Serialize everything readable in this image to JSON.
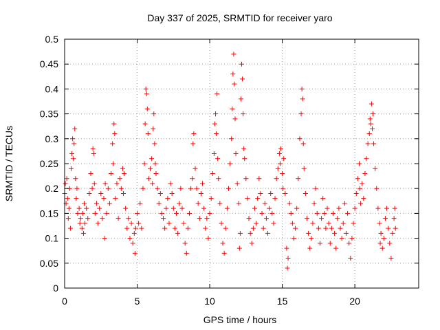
{
  "chart_data": {
    "type": "scatter",
    "title": "Day 337 of 2025, SRMTID for receiver yaro",
    "xlabel": "GPS time / hours",
    "ylabel": "SRMTID / TECUs",
    "xlim": [
      0,
      24.4
    ],
    "ylim": [
      0,
      0.5
    ],
    "x_ticks": [
      0,
      5,
      10,
      15,
      20
    ],
    "x_tick_labels": [
      "0",
      "5",
      "10",
      "15",
      "20"
    ],
    "y_ticks": [
      0,
      0.05,
      0.1,
      0.15,
      0.2,
      0.25,
      0.3,
      0.35,
      0.4,
      0.45,
      0.5
    ],
    "y_tick_labels": [
      "0",
      "0.05",
      "0.1",
      "0.15",
      "0.2",
      "0.25",
      "0.3",
      "0.35",
      "0.4",
      "0.45",
      "0.5"
    ],
    "grid": true,
    "marker": "+",
    "color": "#ff0000",
    "series": [
      {
        "name": "SRMTID",
        "points": [
          [
            0.0,
            0.19
          ],
          [
            0.05,
            0.21
          ],
          [
            0.1,
            0.17
          ],
          [
            0.15,
            0.22
          ],
          [
            0.2,
            0.18
          ],
          [
            0.25,
            0.14
          ],
          [
            0.3,
            0.16
          ],
          [
            0.35,
            0.2
          ],
          [
            0.4,
            0.12
          ],
          [
            0.45,
            0.24
          ],
          [
            0.5,
            0.27
          ],
          [
            0.55,
            0.3
          ],
          [
            0.6,
            0.26
          ],
          [
            0.65,
            0.29
          ],
          [
            0.7,
            0.32
          ],
          [
            0.75,
            0.22
          ],
          [
            0.8,
            0.18
          ],
          [
            0.85,
            0.2
          ],
          [
            0.9,
            0.15
          ],
          [
            1.0,
            0.16
          ],
          [
            1.05,
            0.13
          ],
          [
            1.1,
            0.14
          ],
          [
            1.2,
            0.12
          ],
          [
            1.25,
            0.15
          ],
          [
            1.3,
            0.11
          ],
          [
            1.35,
            0.17
          ],
          [
            1.4,
            0.13
          ],
          [
            1.5,
            0.16
          ],
          [
            1.6,
            0.14
          ],
          [
            1.7,
            0.19
          ],
          [
            1.8,
            0.23
          ],
          [
            1.9,
            0.2
          ],
          [
            1.95,
            0.28
          ],
          [
            2.0,
            0.27
          ],
          [
            2.05,
            0.21
          ],
          [
            2.1,
            0.15
          ],
          [
            2.2,
            0.17
          ],
          [
            2.3,
            0.13
          ],
          [
            2.4,
            0.16
          ],
          [
            2.5,
            0.19
          ],
          [
            2.6,
            0.14
          ],
          [
            2.7,
            0.18
          ],
          [
            2.75,
            0.1
          ],
          [
            2.8,
            0.21
          ],
          [
            2.9,
            0.15
          ],
          [
            3.0,
            0.2
          ],
          [
            3.1,
            0.17
          ],
          [
            3.2,
            0.23
          ],
          [
            3.3,
            0.29
          ],
          [
            3.35,
            0.25
          ],
          [
            3.4,
            0.33
          ],
          [
            3.45,
            0.31
          ],
          [
            3.5,
            0.18
          ],
          [
            3.6,
            0.21
          ],
          [
            3.7,
            0.14
          ],
          [
            3.8,
            0.22
          ],
          [
            3.9,
            0.2
          ],
          [
            4.0,
            0.24
          ],
          [
            4.05,
            0.19
          ],
          [
            4.1,
            0.23
          ],
          [
            4.2,
            0.16
          ],
          [
            4.3,
            0.12
          ],
          [
            4.4,
            0.14
          ],
          [
            4.5,
            0.1
          ],
          [
            4.6,
            0.13
          ],
          [
            4.7,
            0.09
          ],
          [
            4.8,
            0.11
          ],
          [
            4.85,
            0.07
          ],
          [
            4.9,
            0.12
          ],
          [
            5.0,
            0.15
          ],
          [
            5.1,
            0.13
          ],
          [
            5.2,
            0.17
          ],
          [
            5.3,
            0.12
          ],
          [
            5.4,
            0.2
          ],
          [
            5.5,
            0.25
          ],
          [
            5.55,
            0.33
          ],
          [
            5.6,
            0.4
          ],
          [
            5.65,
            0.39
          ],
          [
            5.7,
            0.36
          ],
          [
            5.75,
            0.31
          ],
          [
            5.8,
            0.22
          ],
          [
            5.9,
            0.24
          ],
          [
            6.0,
            0.26
          ],
          [
            6.05,
            0.21
          ],
          [
            6.1,
            0.32
          ],
          [
            6.15,
            0.35
          ],
          [
            6.2,
            0.29
          ],
          [
            6.25,
            0.25
          ],
          [
            6.3,
            0.23
          ],
          [
            6.4,
            0.2
          ],
          [
            6.5,
            0.17
          ],
          [
            6.6,
            0.19
          ],
          [
            6.7,
            0.15
          ],
          [
            6.8,
            0.14
          ],
          [
            6.9,
            0.12
          ],
          [
            7.0,
            0.16
          ],
          [
            7.1,
            0.18
          ],
          [
            7.2,
            0.13
          ],
          [
            7.3,
            0.21
          ],
          [
            7.4,
            0.19
          ],
          [
            7.5,
            0.16
          ],
          [
            7.6,
            0.12
          ],
          [
            7.7,
            0.15
          ],
          [
            7.8,
            0.11
          ],
          [
            7.9,
            0.17
          ],
          [
            8.0,
            0.2
          ],
          [
            8.1,
            0.16
          ],
          [
            8.2,
            0.13
          ],
          [
            8.3,
            0.09
          ],
          [
            8.4,
            0.07
          ],
          [
            8.5,
            0.12
          ],
          [
            8.6,
            0.15
          ],
          [
            8.7,
            0.2
          ],
          [
            8.8,
            0.22
          ],
          [
            8.85,
            0.29
          ],
          [
            8.9,
            0.31
          ],
          [
            9.0,
            0.24
          ],
          [
            9.1,
            0.2
          ],
          [
            9.2,
            0.17
          ],
          [
            9.3,
            0.14
          ],
          [
            9.4,
            0.19
          ],
          [
            9.5,
            0.21
          ],
          [
            9.6,
            0.16
          ],
          [
            9.7,
            0.12
          ],
          [
            9.8,
            0.14
          ],
          [
            9.9,
            0.1
          ],
          [
            10.0,
            0.15
          ],
          [
            10.1,
            0.18
          ],
          [
            10.2,
            0.23
          ],
          [
            10.3,
            0.27
          ],
          [
            10.35,
            0.33
          ],
          [
            10.4,
            0.35
          ],
          [
            10.45,
            0.31
          ],
          [
            10.5,
            0.39
          ],
          [
            10.55,
            0.26
          ],
          [
            10.6,
            0.22
          ],
          [
            10.7,
            0.17
          ],
          [
            10.8,
            0.13
          ],
          [
            10.9,
            0.09
          ],
          [
            11.0,
            0.07
          ],
          [
            11.1,
            0.12
          ],
          [
            11.2,
            0.16
          ],
          [
            11.3,
            0.2
          ],
          [
            11.4,
            0.25
          ],
          [
            11.5,
            0.3
          ],
          [
            11.55,
            0.36
          ],
          [
            11.6,
            0.43
          ],
          [
            11.65,
            0.47
          ],
          [
            11.7,
            0.41
          ],
          [
            11.75,
            0.34
          ],
          [
            11.8,
            0.27
          ],
          [
            11.9,
            0.21
          ],
          [
            12.0,
            0.17
          ],
          [
            12.05,
            0.08
          ],
          [
            12.1,
            0.11
          ],
          [
            12.15,
            0.38
          ],
          [
            12.2,
            0.45
          ],
          [
            12.25,
            0.42
          ],
          [
            12.3,
            0.35
          ],
          [
            12.35,
            0.28
          ],
          [
            12.4,
            0.26
          ],
          [
            12.5,
            0.22
          ],
          [
            12.6,
            0.18
          ],
          [
            12.7,
            0.14
          ],
          [
            12.8,
            0.11
          ],
          [
            12.9,
            0.09
          ],
          [
            13.0,
            0.12
          ],
          [
            13.1,
            0.16
          ],
          [
            13.2,
            0.13
          ],
          [
            13.3,
            0.18
          ],
          [
            13.4,
            0.22
          ],
          [
            13.5,
            0.19
          ],
          [
            13.6,
            0.15
          ],
          [
            13.7,
            0.12
          ],
          [
            13.8,
            0.17
          ],
          [
            13.9,
            0.14
          ],
          [
            14.0,
            0.11
          ],
          [
            14.1,
            0.16
          ],
          [
            14.2,
            0.19
          ],
          [
            14.3,
            0.15
          ],
          [
            14.4,
            0.13
          ],
          [
            14.5,
            0.18
          ],
          [
            14.6,
            0.22
          ],
          [
            14.7,
            0.24
          ],
          [
            14.8,
            0.27
          ],
          [
            14.85,
            0.25
          ],
          [
            14.9,
            0.28
          ],
          [
            15.0,
            0.23
          ],
          [
            15.05,
            0.2
          ],
          [
            15.1,
            0.26
          ],
          [
            15.2,
            0.19
          ],
          [
            15.3,
            0.08
          ],
          [
            15.35,
            0.04
          ],
          [
            15.4,
            0.06
          ],
          [
            15.5,
            0.17
          ],
          [
            15.6,
            0.15
          ],
          [
            15.7,
            0.13
          ],
          [
            15.8,
            0.1
          ],
          [
            15.9,
            0.12
          ],
          [
            16.0,
            0.16
          ],
          [
            16.1,
            0.22
          ],
          [
            16.2,
            0.3
          ],
          [
            16.3,
            0.35
          ],
          [
            16.35,
            0.4
          ],
          [
            16.4,
            0.38
          ],
          [
            16.45,
            0.29
          ],
          [
            16.5,
            0.24
          ],
          [
            16.6,
            0.19
          ],
          [
            16.7,
            0.14
          ],
          [
            16.8,
            0.11
          ],
          [
            16.9,
            0.08
          ],
          [
            17.0,
            0.1
          ],
          [
            17.1,
            0.13
          ],
          [
            17.2,
            0.17
          ],
          [
            17.3,
            0.2
          ],
          [
            17.4,
            0.15
          ],
          [
            17.5,
            0.12
          ],
          [
            17.6,
            0.09
          ],
          [
            17.7,
            0.14
          ],
          [
            17.8,
            0.18
          ],
          [
            17.9,
            0.15
          ],
          [
            18.0,
            0.12
          ],
          [
            18.1,
            0.16
          ],
          [
            18.2,
            0.13
          ],
          [
            18.3,
            0.09
          ],
          [
            18.4,
            0.12
          ],
          [
            18.5,
            0.15
          ],
          [
            18.6,
            0.11
          ],
          [
            18.7,
            0.08
          ],
          [
            18.8,
            0.14
          ],
          [
            18.9,
            0.16
          ],
          [
            19.0,
            0.12
          ],
          [
            19.1,
            0.1
          ],
          [
            19.2,
            0.13
          ],
          [
            19.3,
            0.17
          ],
          [
            19.4,
            0.11
          ],
          [
            19.5,
            0.15
          ],
          [
            19.6,
            0.09
          ],
          [
            19.7,
            0.06
          ],
          [
            19.8,
            0.1
          ],
          [
            19.9,
            0.13
          ],
          [
            20.0,
            0.16
          ],
          [
            20.1,
            0.19
          ],
          [
            20.2,
            0.22
          ],
          [
            20.3,
            0.25
          ],
          [
            20.35,
            0.2
          ],
          [
            20.4,
            0.17
          ],
          [
            20.5,
            0.21
          ],
          [
            20.6,
            0.18
          ],
          [
            20.7,
            0.23
          ],
          [
            20.8,
            0.26
          ],
          [
            20.9,
            0.29
          ],
          [
            21.0,
            0.31
          ],
          [
            21.05,
            0.34
          ],
          [
            21.1,
            0.33
          ],
          [
            21.15,
            0.37
          ],
          [
            21.2,
            0.32
          ],
          [
            21.25,
            0.35
          ],
          [
            21.3,
            0.29
          ],
          [
            21.4,
            0.24
          ],
          [
            21.5,
            0.2
          ],
          [
            21.6,
            0.16
          ],
          [
            21.7,
            0.13
          ],
          [
            21.75,
            0.09
          ],
          [
            21.8,
            0.11
          ],
          [
            21.9,
            0.08
          ],
          [
            22.0,
            0.1
          ],
          [
            22.1,
            0.14
          ],
          [
            22.2,
            0.16
          ],
          [
            22.3,
            0.12
          ],
          [
            22.4,
            0.09
          ],
          [
            22.5,
            0.06
          ],
          [
            22.6,
            0.11
          ],
          [
            22.7,
            0.14
          ],
          [
            22.75,
            0.16
          ],
          [
            22.8,
            0.12
          ]
        ]
      }
    ]
  }
}
